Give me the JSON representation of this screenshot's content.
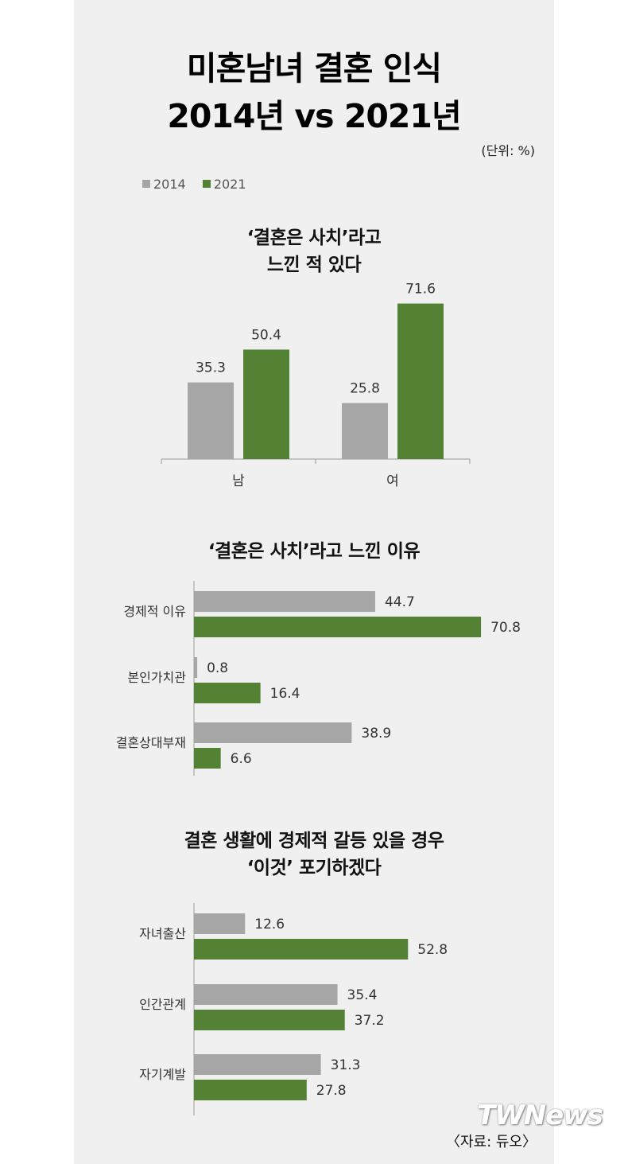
{
  "title": {
    "line1": "미혼남녀 결혼 인식",
    "line2": "2014년 vs 2021년"
  },
  "unit_label": "(단위: %)",
  "legend": [
    {
      "label": "2014",
      "color": "#a6a6a6"
    },
    {
      "label": "2021",
      "color": "#548235"
    }
  ],
  "source_label": "〈자료: 듀오〉",
  "watermark": "TWNews",
  "chart_data": [
    {
      "type": "bar",
      "title_lines": [
        "‘결혼은 사치’라고",
        "느낀 적 있다"
      ],
      "categories": [
        "남",
        "여"
      ],
      "series": [
        {
          "name": "2014",
          "color": "#a6a6a6",
          "values": [
            35.3,
            25.8
          ]
        },
        {
          "name": "2021",
          "color": "#548235",
          "values": [
            50.4,
            71.6
          ]
        }
      ]
    },
    {
      "type": "bar",
      "orientation": "horizontal",
      "title_lines": [
        "‘결혼은 사치’라고 느낀 이유"
      ],
      "categories": [
        "경제적 이유",
        "본인가치관",
        "결혼상대부재"
      ],
      "series": [
        {
          "name": "2014",
          "color": "#a6a6a6",
          "values": [
            44.7,
            0.8,
            38.9
          ]
        },
        {
          "name": "2021",
          "color": "#548235",
          "values": [
            70.8,
            16.4,
            6.6
          ]
        }
      ]
    },
    {
      "type": "bar",
      "orientation": "horizontal",
      "title_lines": [
        "결혼 생활에 경제적 갈등 있을 경우",
        "‘이것’ 포기하겠다"
      ],
      "categories": [
        "자녀출산",
        "인간관계",
        "자기계발"
      ],
      "series": [
        {
          "name": "2014",
          "color": "#a6a6a6",
          "values": [
            12.6,
            35.4,
            31.3
          ]
        },
        {
          "name": "2021",
          "color": "#548235",
          "values": [
            52.8,
            37.2,
            27.8
          ]
        }
      ]
    }
  ]
}
